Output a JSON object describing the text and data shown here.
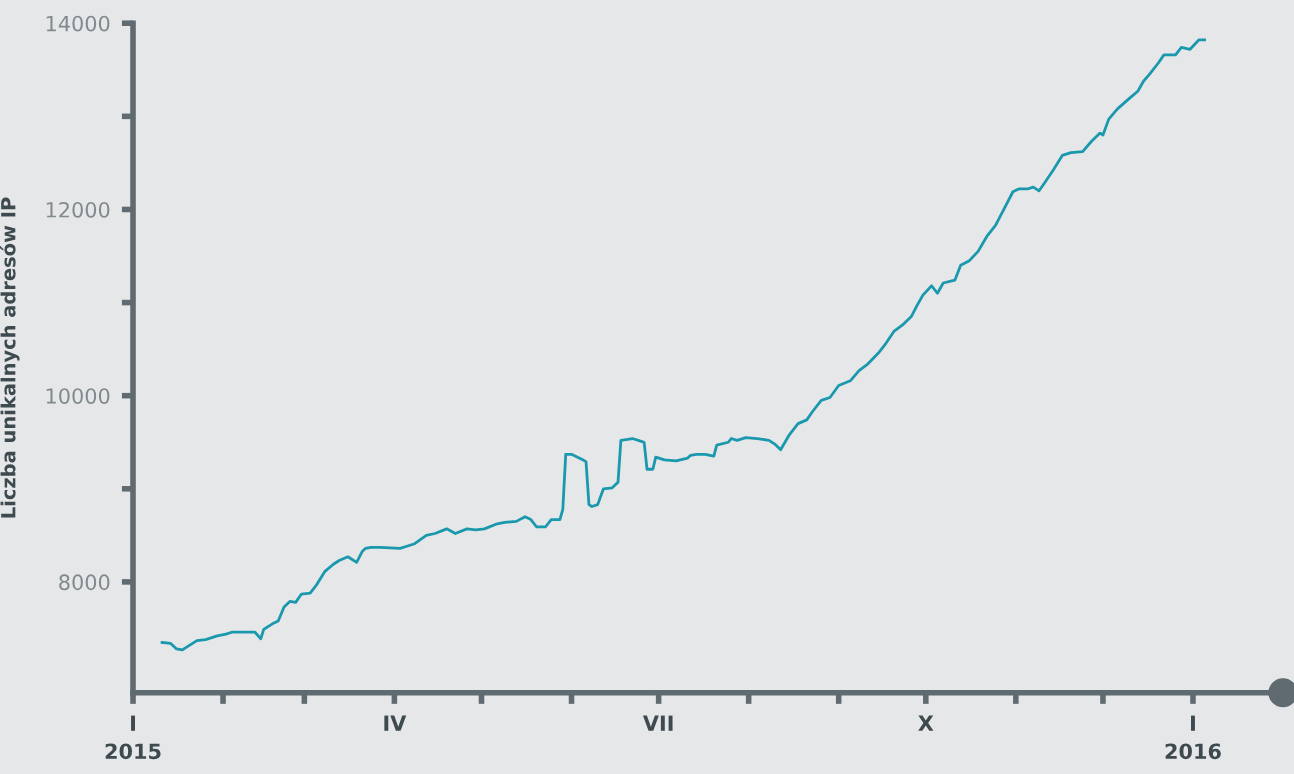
{
  "chart_data": {
    "type": "line",
    "ylabel": "Liczba unikalnych adresów IP",
    "xlim": [
      "2015-01-01",
      "2016-02-01"
    ],
    "ylim": [
      6810,
      14000
    ],
    "xticks": [
      {
        "value": "2015-01-01",
        "label": "I\n2015"
      },
      {
        "value": "2015-02-01",
        "label": null
      },
      {
        "value": "2015-03-01",
        "label": null
      },
      {
        "value": "2015-04-01",
        "label": "IV"
      },
      {
        "value": "2015-05-01",
        "label": null
      },
      {
        "value": "2015-06-01",
        "label": null
      },
      {
        "value": "2015-07-01",
        "label": "VII"
      },
      {
        "value": "2015-08-01",
        "label": null
      },
      {
        "value": "2015-09-01",
        "label": null
      },
      {
        "value": "2015-10-01",
        "label": "X"
      },
      {
        "value": "2015-11-01",
        "label": null
      },
      {
        "value": "2015-12-01",
        "label": null
      },
      {
        "value": "2016-01-01",
        "label": "I\n2016"
      }
    ],
    "yticks": [
      8000,
      {
        "value": 9000,
        "label": null
      },
      10000,
      {
        "value": 11000,
        "label": null
      },
      12000,
      {
        "value": 13000,
        "label": null
      },
      14000
    ],
    "grid": false,
    "legend": false,
    "marker": "none",
    "line_style": "solid",
    "series": [
      {
        "color": "#1a98ad",
        "x": [
          "2015-01-11",
          "2015-01-14",
          "2015-01-16",
          "2015-01-18",
          "2015-01-20",
          "2015-01-23",
          "2015-01-26",
          "2015-01-30",
          "2015-02-02",
          "2015-02-04",
          "2015-02-09",
          "2015-02-12",
          "2015-02-14",
          "2015-02-15",
          "2015-02-18",
          "2015-02-20",
          "2015-02-22",
          "2015-02-24",
          "2015-02-26",
          "2015-02-28",
          "2015-03-03",
          "2015-03-05",
          "2015-03-08",
          "2015-03-11",
          "2015-03-13",
          "2015-03-16",
          "2015-03-19",
          "2015-03-21",
          "2015-03-22",
          "2015-03-24",
          "2015-03-27",
          "2015-04-03",
          "2015-04-05",
          "2015-04-08",
          "2015-04-12",
          "2015-04-15",
          "2015-04-19",
          "2015-04-22",
          "2015-04-26",
          "2015-04-29",
          "2015-05-02",
          "2015-05-06",
          "2015-05-09",
          "2015-05-13",
          "2015-05-16",
          "2015-05-18",
          "2015-05-20",
          "2015-05-23",
          "2015-05-25",
          "2015-05-28",
          "2015-05-29",
          "2015-05-30",
          "2015-06-01",
          "2015-06-05",
          "2015-06-06",
          "2015-06-07",
          "2015-06-08",
          "2015-06-10",
          "2015-06-12",
          "2015-06-15",
          "2015-06-17",
          "2015-06-18",
          "2015-06-22",
          "2015-06-25",
          "2015-06-26",
          "2015-06-27",
          "2015-06-29",
          "2015-06-30",
          "2015-07-03",
          "2015-07-07",
          "2015-07-11",
          "2015-07-12",
          "2015-07-14",
          "2015-07-17",
          "2015-07-20",
          "2015-07-21",
          "2015-07-25",
          "2015-07-26",
          "2015-07-28",
          "2015-07-31",
          "2015-08-04",
          "2015-08-08",
          "2015-08-10",
          "2015-08-12",
          "2015-08-15",
          "2015-08-18",
          "2015-08-21",
          "2015-08-23",
          "2015-08-26",
          "2015-08-29",
          "2015-09-01",
          "2015-09-05",
          "2015-09-08",
          "2015-09-11",
          "2015-09-15",
          "2015-09-17",
          "2015-09-20",
          "2015-09-23",
          "2015-09-26",
          "2015-09-28",
          "2015-09-30",
          "2015-10-03",
          "2015-10-05",
          "2015-10-07",
          "2015-10-11",
          "2015-10-13",
          "2015-10-16",
          "2015-10-19",
          "2015-10-22",
          "2015-10-25",
          "2015-10-28",
          "2015-10-31",
          "2015-11-02",
          "2015-11-05",
          "2015-11-07",
          "2015-11-09",
          "2015-11-11",
          "2015-11-14",
          "2015-11-17",
          "2015-11-20",
          "2015-11-24",
          "2015-11-27",
          "2015-11-30",
          "2015-12-01",
          "2015-12-03",
          "2015-12-06",
          "2015-12-10",
          "2015-12-13",
          "2015-12-15",
          "2015-12-17",
          "2015-12-20",
          "2015-12-22",
          "2015-12-26",
          "2015-12-28",
          "2015-12-31",
          "2016-01-03",
          "2016-01-05"
        ],
        "values": [
          7350,
          7340,
          7280,
          7270,
          7310,
          7370,
          7380,
          7420,
          7440,
          7460,
          7460,
          7460,
          7390,
          7490,
          7550,
          7580,
          7730,
          7790,
          7780,
          7870,
          7880,
          7960,
          8110,
          8190,
          8230,
          8270,
          8210,
          8330,
          8360,
          8370,
          8370,
          8360,
          8380,
          8410,
          8500,
          8520,
          8570,
          8520,
          8570,
          8560,
          8570,
          8620,
          8640,
          8650,
          8700,
          8670,
          8590,
          8590,
          8670,
          8670,
          8780,
          9370,
          9370,
          9310,
          9290,
          8830,
          8810,
          8830,
          9000,
          9010,
          9070,
          9520,
          9540,
          9510,
          9500,
          9210,
          9210,
          9340,
          9310,
          9300,
          9330,
          9360,
          9370,
          9370,
          9350,
          9470,
          9500,
          9540,
          9520,
          9550,
          9540,
          9520,
          9480,
          9420,
          9580,
          9700,
          9740,
          9830,
          9950,
          9980,
          10110,
          10160,
          10270,
          10340,
          10470,
          10550,
          10690,
          10760,
          10850,
          10970,
          11080,
          11180,
          11100,
          11210,
          11240,
          11400,
          11450,
          11550,
          11710,
          11830,
          12010,
          12190,
          12220,
          12220,
          12240,
          12200,
          12290,
          12430,
          12580,
          12610,
          12620,
          12730,
          12820,
          12800,
          12970,
          13080,
          13190,
          13270,
          13380,
          13450,
          13570,
          13660,
          13660,
          13740,
          13720,
          13820,
          13820
        ]
      }
    ]
  }
}
